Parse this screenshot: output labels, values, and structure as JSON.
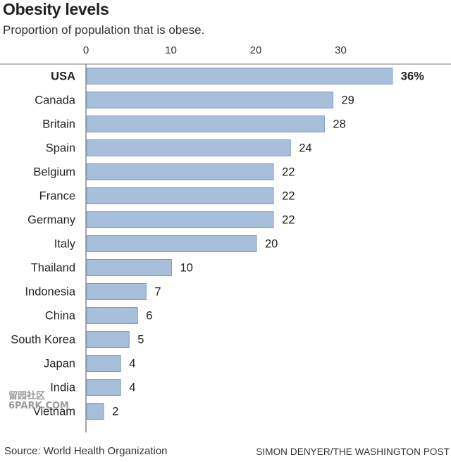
{
  "header": {
    "title": "Obesity levels",
    "subtitle": "Proportion of population that is obese."
  },
  "footer": {
    "source": "Source: World Health Organization",
    "credit": "SIMON DENYER/THE WASHINGTON POST"
  },
  "watermark": "留园社区\n6PARK.COM",
  "colors": {
    "bar_fill": "#a8bfdc",
    "bar_stroke": "#7f9cc4",
    "axis": "#888888",
    "text": "#222222"
  },
  "chart_data": {
    "type": "bar",
    "orientation": "horizontal",
    "title": "Obesity levels",
    "subtitle": "Proportion of population that is obese.",
    "xlabel": "",
    "ylabel": "",
    "xlim": [
      0,
      36
    ],
    "x_ticks": [
      0,
      10,
      20,
      30
    ],
    "grid": false,
    "categories": [
      "USA",
      "Canada",
      "Britain",
      "Spain",
      "Belgium",
      "France",
      "Germany",
      "Italy",
      "Thailand",
      "Indonesia",
      "China",
      "South Korea",
      "Japan",
      "India",
      "Vietnam"
    ],
    "values": [
      36,
      29,
      28,
      24,
      22,
      22,
      22,
      20,
      10,
      7,
      6,
      5,
      4,
      4,
      2
    ],
    "value_labels": [
      "36%",
      "29",
      "28",
      "24",
      "22",
      "22",
      "22",
      "20",
      "10",
      "7",
      "6",
      "5",
      "4",
      "4",
      "2"
    ],
    "highlighted": [
      "USA"
    ]
  }
}
